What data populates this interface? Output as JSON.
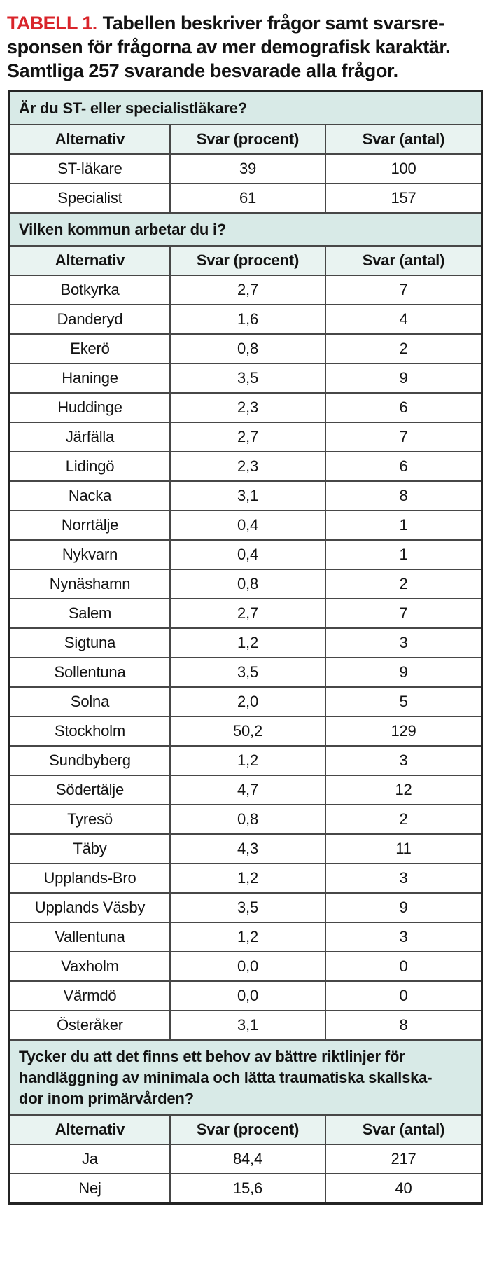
{
  "page": {
    "title_label": "TABELL 1.",
    "title_line1_rest": "Tabellen beskriver frågor samt svarsre-",
    "title_line2": "sponsen för frågorna av mer demografisk karaktär.",
    "title_line3": "Samtliga 257 svarande besvarade alla frågor."
  },
  "colors": {
    "accent_red": "#d9252b",
    "band_bg": "#d8eae7",
    "header_bg": "#e9f3f1",
    "grid": "#474747",
    "outer": "#242424"
  },
  "table": {
    "columns": [
      "Alternativ",
      "Svar (procent)",
      "Svar (antal)"
    ],
    "sections": [
      {
        "question_lines": [
          "Är du ST- eller specialistläkare?"
        ],
        "rows": [
          [
            "ST-läkare",
            "39",
            "100"
          ],
          [
            "Specialist",
            "61",
            "157"
          ]
        ]
      },
      {
        "question_lines": [
          "Vilken kommun arbetar du i?"
        ],
        "rows": [
          [
            "Botkyrka",
            "2,7",
            "7"
          ],
          [
            "Danderyd",
            "1,6",
            "4"
          ],
          [
            "Ekerö",
            "0,8",
            "2"
          ],
          [
            "Haninge",
            "3,5",
            "9"
          ],
          [
            "Huddinge",
            "2,3",
            "6"
          ],
          [
            "Järfälla",
            "2,7",
            "7"
          ],
          [
            "Lidingö",
            "2,3",
            "6"
          ],
          [
            "Nacka",
            "3,1",
            "8"
          ],
          [
            "Norrtälje",
            "0,4",
            "1"
          ],
          [
            "Nykvarn",
            "0,4",
            "1"
          ],
          [
            "Nynäshamn",
            "0,8",
            "2"
          ],
          [
            "Salem",
            "2,7",
            "7"
          ],
          [
            "Sigtuna",
            "1,2",
            "3"
          ],
          [
            "Sollentuna",
            "3,5",
            "9"
          ],
          [
            "Solna",
            "2,0",
            "5"
          ],
          [
            "Stockholm",
            "50,2",
            "129"
          ],
          [
            "Sundbyberg",
            "1,2",
            "3"
          ],
          [
            "Södertälje",
            "4,7",
            "12"
          ],
          [
            "Tyresö",
            "0,8",
            "2"
          ],
          [
            "Täby",
            "4,3",
            "11"
          ],
          [
            "Upplands-Bro",
            "1,2",
            "3"
          ],
          [
            "Upplands Väsby",
            "3,5",
            "9"
          ],
          [
            "Vallentuna",
            "1,2",
            "3"
          ],
          [
            "Vaxholm",
            "0,0",
            "0"
          ],
          [
            "Värmdö",
            "0,0",
            "0"
          ],
          [
            "Österåker",
            "3,1",
            "8"
          ]
        ]
      },
      {
        "question_lines": [
          "Tycker du att det finns ett behov av bättre riktlinjer för",
          "handläggning av minimala och lätta traumatiska skallska-",
          "dor inom primärvården?"
        ],
        "rows": [
          [
            "Ja",
            "84,4",
            "217"
          ],
          [
            "Nej",
            "15,6",
            "40"
          ]
        ]
      }
    ]
  }
}
